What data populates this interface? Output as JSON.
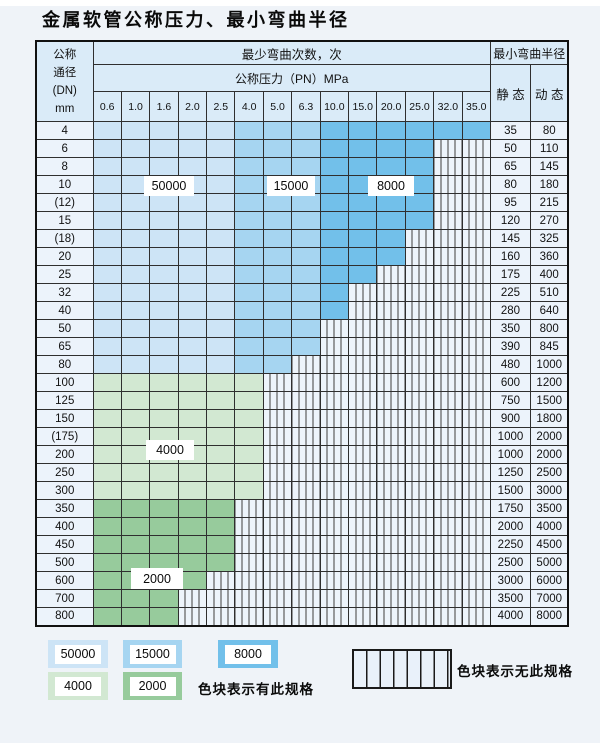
{
  "title": "金属软管公称压力、最小弯曲半径",
  "table": {
    "header": {
      "dn_lines": [
        "公称",
        "通径",
        "(DN)",
        "mm"
      ],
      "cycles": "最少弯曲次数，次",
      "pressure": "公称压力（PN）MPa",
      "radius": "最小弯曲半径",
      "static": "静 态",
      "dynamic": "动 态"
    },
    "pressures": [
      "0.6",
      "1.0",
      "1.6",
      "2.0",
      "2.5",
      "4.0",
      "5.0",
      "6.3",
      "10.0",
      "15.0",
      "20.0",
      "25.0",
      "32.0",
      "35.0"
    ],
    "rows": [
      {
        "dn": "4",
        "colored": 14,
        "region": "blue",
        "static": "35",
        "dynamic": "80"
      },
      {
        "dn": "6",
        "colored": 12,
        "region": "blue",
        "static": "50",
        "dynamic": "110"
      },
      {
        "dn": "8",
        "colored": 12,
        "region": "blue",
        "static": "65",
        "dynamic": "145"
      },
      {
        "dn": "10",
        "colored": 12,
        "region": "blue",
        "static": "80",
        "dynamic": "180"
      },
      {
        "dn": "(12)",
        "colored": 12,
        "region": "blue",
        "static": "95",
        "dynamic": "215"
      },
      {
        "dn": "15",
        "colored": 12,
        "region": "blue",
        "static": "120",
        "dynamic": "270"
      },
      {
        "dn": "(18)",
        "colored": 11,
        "region": "blue",
        "static": "145",
        "dynamic": "325"
      },
      {
        "dn": "20",
        "colored": 11,
        "region": "blue",
        "static": "160",
        "dynamic": "360"
      },
      {
        "dn": "25",
        "colored": 10,
        "region": "blue",
        "static": "175",
        "dynamic": "400"
      },
      {
        "dn": "32",
        "colored": 9,
        "region": "blue",
        "static": "225",
        "dynamic": "510"
      },
      {
        "dn": "40",
        "colored": 9,
        "region": "blue",
        "static": "280",
        "dynamic": "640"
      },
      {
        "dn": "50",
        "colored": 8,
        "region": "blue",
        "static": "350",
        "dynamic": "800"
      },
      {
        "dn": "65",
        "colored": 8,
        "region": "blue",
        "static": "390",
        "dynamic": "845"
      },
      {
        "dn": "80",
        "colored": 7,
        "region": "blue",
        "static": "480",
        "dynamic": "1000"
      },
      {
        "dn": "100",
        "colored": 6,
        "region": "g4",
        "static": "600",
        "dynamic": "1200"
      },
      {
        "dn": "125",
        "colored": 6,
        "region": "g4",
        "static": "750",
        "dynamic": "1500"
      },
      {
        "dn": "150",
        "colored": 6,
        "region": "g4",
        "static": "900",
        "dynamic": "1800"
      },
      {
        "dn": "(175)",
        "colored": 6,
        "region": "g4",
        "static": "1000",
        "dynamic": "2000"
      },
      {
        "dn": "200",
        "colored": 6,
        "region": "g4",
        "static": "1000",
        "dynamic": "2000"
      },
      {
        "dn": "250",
        "colored": 6,
        "region": "g4",
        "static": "1250",
        "dynamic": "2500"
      },
      {
        "dn": "300",
        "colored": 6,
        "region": "g4",
        "static": "1500",
        "dynamic": "3000"
      },
      {
        "dn": "350",
        "colored": 5,
        "region": "g2",
        "static": "1750",
        "dynamic": "3500"
      },
      {
        "dn": "400",
        "colored": 5,
        "region": "g2",
        "static": "2000",
        "dynamic": "4000"
      },
      {
        "dn": "450",
        "colored": 5,
        "region": "g2",
        "static": "2250",
        "dynamic": "4500"
      },
      {
        "dn": "500",
        "colored": 5,
        "region": "g2",
        "static": "2500",
        "dynamic": "5000"
      },
      {
        "dn": "600",
        "colored": 4,
        "region": "g2",
        "static": "3000",
        "dynamic": "6000"
      },
      {
        "dn": "700",
        "colored": 3,
        "region": "g2",
        "static": "3500",
        "dynamic": "7000"
      },
      {
        "dn": "800",
        "colored": 3,
        "region": "g2",
        "static": "4000",
        "dynamic": "8000"
      }
    ]
  },
  "overlays": {
    "l50000": "50000",
    "l15000": "15000",
    "l8000": "8000",
    "l4000": "4000",
    "l2000": "2000"
  },
  "legend": {
    "items": {
      "b50000": "50000",
      "b15000": "15000",
      "b8000": "8000",
      "g4000": "4000",
      "g2000": "2000"
    },
    "has_spec_text": "色块表示有此规格",
    "no_spec_text": "色块表示无此规格"
  },
  "colors": {
    "c50000": "#cde4f6",
    "c15000": "#a6d5f1",
    "c8000": "#72c0ea",
    "c4000": "#d2e8d2",
    "c2000": "#97cb9c"
  }
}
